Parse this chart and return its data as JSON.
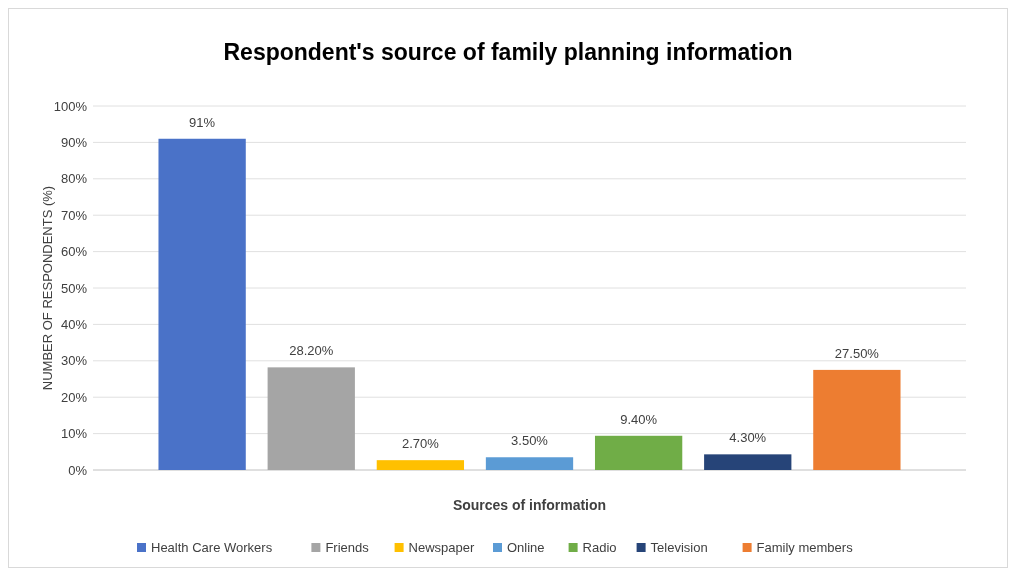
{
  "chart_data": {
    "type": "bar",
    "title": "Respondent's source of family planning information",
    "xlabel": "Sources of information",
    "ylabel": "NUMBER OF RESPONDENTS (%)",
    "categories": [
      null
    ],
    "series": [
      {
        "name": "Health Care Workers",
        "color": "#4a72c8",
        "values": [
          91
        ],
        "value_labels": [
          "91%"
        ]
      },
      {
        "name": "Friends",
        "color": "#a5a5a5",
        "values": [
          28.2
        ],
        "value_labels": [
          "28.20%"
        ]
      },
      {
        "name": "Newspaper",
        "color": "#ffc000",
        "values": [
          2.7
        ],
        "value_labels": [
          "2.70%"
        ]
      },
      {
        "name": "Online",
        "color": "#5b9bd5",
        "values": [
          3.5
        ],
        "value_labels": [
          "3.50%"
        ]
      },
      {
        "name": "Radio",
        "color": "#70ad47",
        "values": [
          9.4
        ],
        "value_labels": [
          "9.40%"
        ]
      },
      {
        "name": "Television",
        "color": "#264478",
        "values": [
          4.3
        ],
        "value_labels": [
          "4.30%"
        ]
      },
      {
        "name": "Family members",
        "color": "#ed7d31",
        "values": [
          27.5
        ],
        "value_labels": [
          "27.50%"
        ]
      }
    ],
    "ylim": [
      0,
      100
    ],
    "yticks": [
      {
        "value": 0,
        "label": "0%"
      },
      {
        "value": 10,
        "label": "10%"
      },
      {
        "value": 20,
        "label": "20%"
      },
      {
        "value": 30,
        "label": "30%"
      },
      {
        "value": 40,
        "label": "40%"
      },
      {
        "value": 50,
        "label": "50%"
      },
      {
        "value": 60,
        "label": "60%"
      },
      {
        "value": 70,
        "label": "70%"
      },
      {
        "value": 80,
        "label": "80%"
      },
      {
        "value": 90,
        "label": "90%"
      },
      {
        "value": 100,
        "label": "100%"
      }
    ],
    "grid": "y",
    "legend": "bottom"
  }
}
